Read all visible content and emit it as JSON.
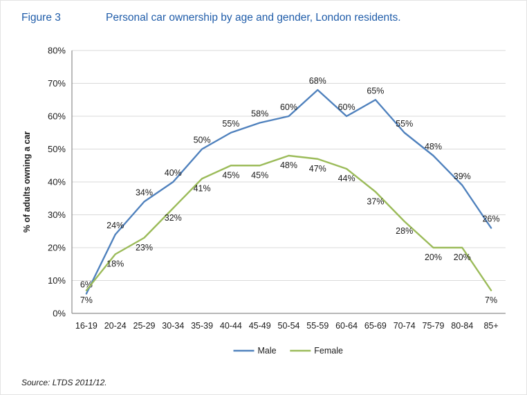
{
  "figure": {
    "label": "Figure 3",
    "title": "Personal car ownership by age and gender, London residents.",
    "source": "Source: LTDS 2011/12."
  },
  "chart_data": {
    "type": "line",
    "title": "Personal car ownership by age and gender, London residents.",
    "categories": [
      "16-19",
      "20-24",
      "25-29",
      "30-34",
      "35-39",
      "40-44",
      "45-49",
      "50-54",
      "55-59",
      "60-64",
      "65-69",
      "70-74",
      "75-79",
      "80-84",
      "85+"
    ],
    "series": [
      {
        "name": "Male",
        "color": "#4F81BD",
        "label_position": "above",
        "values": [
          6,
          24,
          34,
          40,
          50,
          55,
          58,
          60,
          68,
          60,
          65,
          55,
          48,
          39,
          26
        ]
      },
      {
        "name": "Female",
        "color": "#9BBB59",
        "label_position": "below",
        "values": [
          7,
          18,
          23,
          32,
          41,
          45,
          45,
          48,
          47,
          44,
          37,
          28,
          20,
          20,
          7
        ]
      }
    ],
    "xlabel": "",
    "ylabel": "% of adults owning a car",
    "ylim": [
      0,
      80
    ],
    "ytick_step": 10,
    "yticks": [
      "0%",
      "10%",
      "20%",
      "30%",
      "40%",
      "50%",
      "60%",
      "70%",
      "80%"
    ],
    "grid": true,
    "data_labels": true,
    "data_label_suffix": "%",
    "legend_position": "bottom"
  },
  "colors": {
    "title_text": "#1F5CA9",
    "grid": "#D9D9D9",
    "axis": "#8C8C8C",
    "label_text": "#1A1A1A"
  }
}
